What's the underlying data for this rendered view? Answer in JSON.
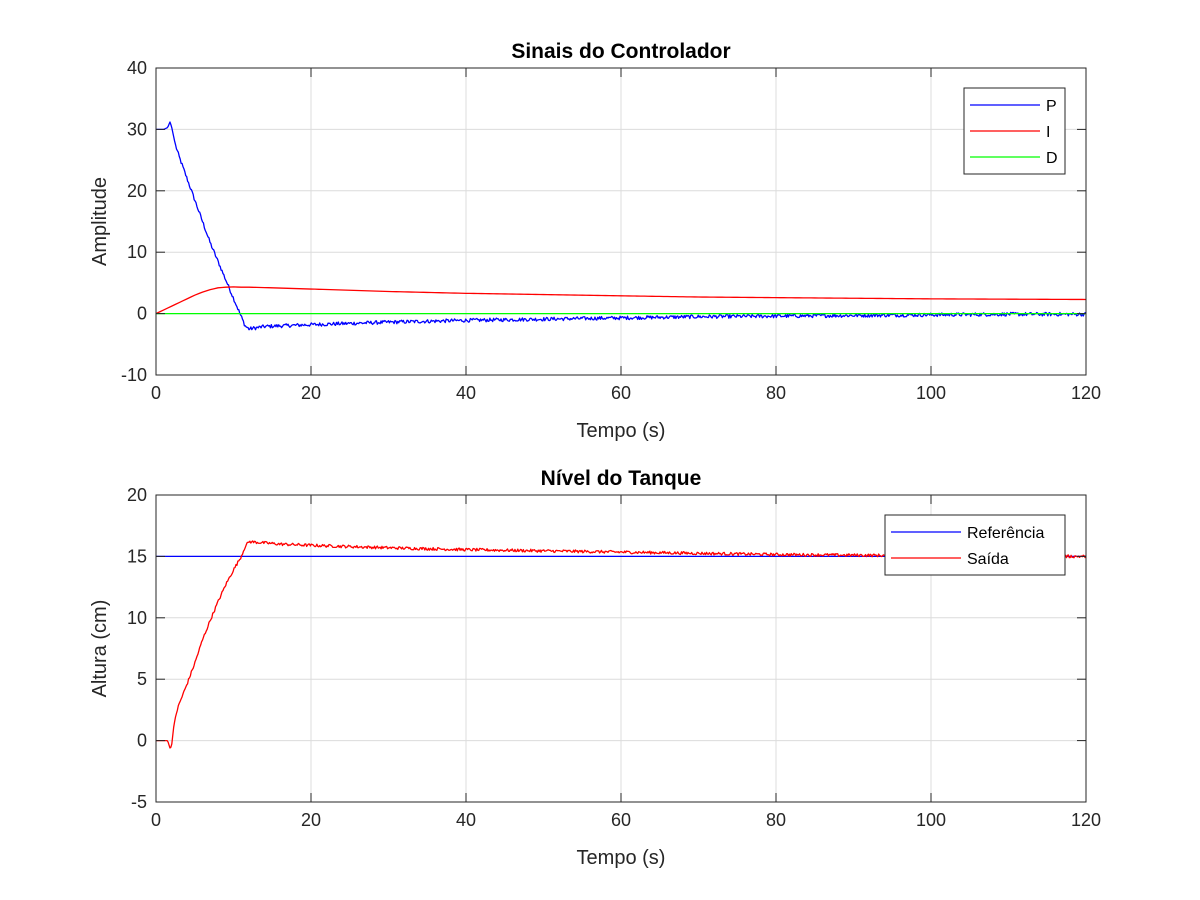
{
  "chart_data": [
    {
      "type": "line",
      "title": "Sinais do Controlador",
      "xlabel": "Tempo (s)",
      "ylabel": "Amplitude",
      "xlim": [
        0,
        120
      ],
      "ylim": [
        -10,
        40
      ],
      "xticks": [
        0,
        20,
        40,
        60,
        80,
        100,
        120
      ],
      "yticks": [
        -10,
        0,
        10,
        20,
        30,
        40
      ],
      "grid": true,
      "legend": "top-right",
      "series": [
        {
          "name": "P",
          "color": "#0000ff",
          "noise": 0.3,
          "x": [
            0,
            1,
            1.5,
            1.8,
            2,
            2.5,
            3,
            4,
            5,
            6,
            7,
            8,
            9,
            10,
            11,
            11.5,
            12,
            14,
            16,
            20,
            25,
            30,
            40,
            50,
            60,
            70,
            80,
            90,
            100,
            110,
            120
          ],
          "y": [
            30,
            30,
            30.3,
            31.2,
            30.5,
            27.5,
            25.5,
            22,
            18.5,
            15,
            11.5,
            8.5,
            5.5,
            2.5,
            -0.5,
            -2,
            -2.5,
            -2.1,
            -2,
            -1.8,
            -1.6,
            -1.4,
            -1.1,
            -0.9,
            -0.7,
            -0.5,
            -0.4,
            -0.3,
            -0.2,
            -0.1,
            -0.1
          ]
        },
        {
          "name": "I",
          "color": "#ff0000",
          "noise": 0,
          "x": [
            0,
            1,
            2,
            3,
            4,
            5,
            6,
            7,
            8,
            9,
            10,
            11,
            12,
            15,
            20,
            30,
            40,
            50,
            60,
            70,
            80,
            90,
            100,
            110,
            120
          ],
          "y": [
            0,
            0.6,
            1.2,
            1.8,
            2.4,
            3.0,
            3.5,
            3.9,
            4.2,
            4.3,
            4.35,
            4.3,
            4.3,
            4.2,
            4.0,
            3.6,
            3.3,
            3.1,
            2.9,
            2.7,
            2.6,
            2.5,
            2.4,
            2.35,
            2.3
          ]
        },
        {
          "name": "D",
          "color": "#00ff00",
          "noise": 0,
          "x": [
            0,
            120
          ],
          "y": [
            0,
            0
          ]
        }
      ]
    },
    {
      "type": "line",
      "title": "Nível do Tanque",
      "xlabel": "Tempo (s)",
      "ylabel": "Altura (cm)",
      "xlim": [
        0,
        120
      ],
      "ylim": [
        -5,
        20
      ],
      "xticks": [
        0,
        20,
        40,
        60,
        80,
        100,
        120
      ],
      "yticks": [
        -5,
        0,
        5,
        10,
        15,
        20
      ],
      "grid": true,
      "legend": "top-right",
      "series": [
        {
          "name": "Referência",
          "color": "#0000ff",
          "noise": 0,
          "x": [
            0,
            120
          ],
          "y": [
            15,
            15
          ]
        },
        {
          "name": "Saída",
          "color": "#ff0000",
          "noise": 0.12,
          "x": [
            0,
            1,
            1.5,
            1.8,
            2,
            2.3,
            2.6,
            3,
            4,
            5,
            6,
            7,
            8,
            9,
            10,
            11,
            11.5,
            12,
            14,
            16,
            20,
            25,
            30,
            40,
            50,
            60,
            70,
            80,
            90,
            100,
            110,
            120
          ],
          "y": [
            0,
            0,
            0,
            -0.6,
            -0.5,
            1.2,
            2.2,
            3.0,
            4.6,
            6.3,
            8.2,
            9.8,
            11.3,
            12.7,
            13.9,
            15.0,
            15.8,
            16.2,
            16.1,
            16.0,
            15.9,
            15.8,
            15.7,
            15.55,
            15.45,
            15.35,
            15.25,
            15.15,
            15.1,
            15.05,
            15.0,
            15.0
          ]
        }
      ]
    }
  ]
}
